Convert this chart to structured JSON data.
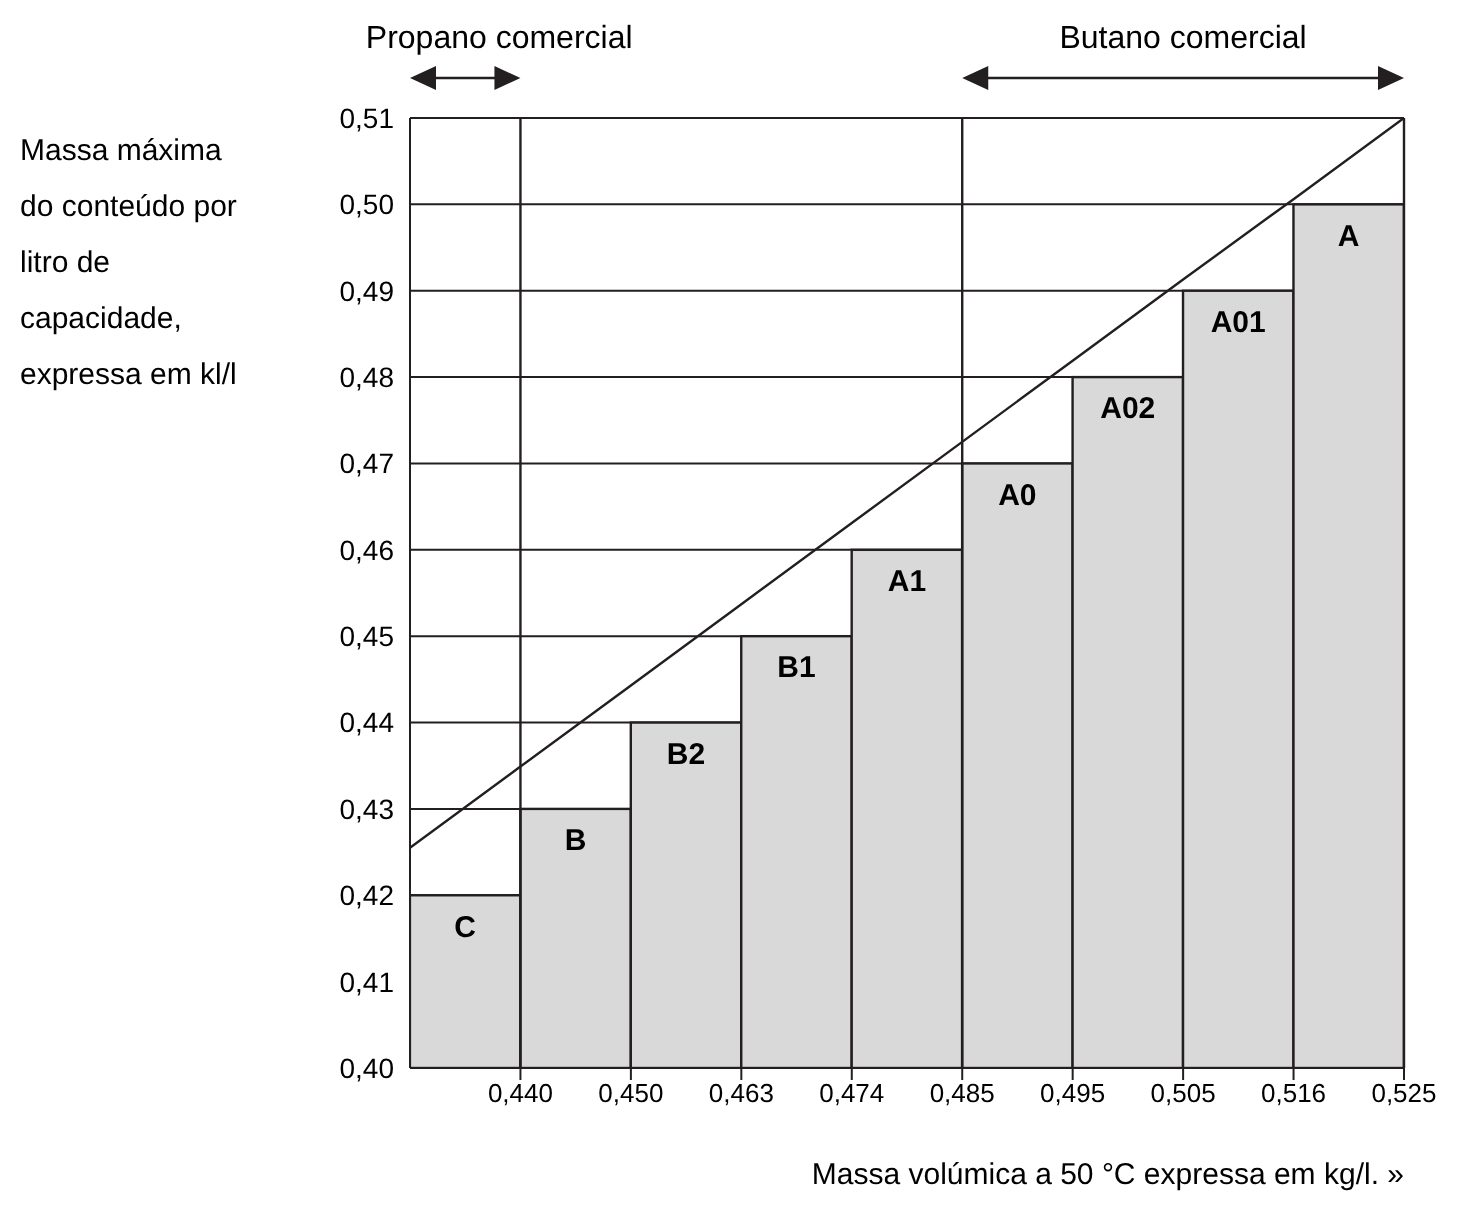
{
  "chart_data": {
    "type": "bar",
    "categories": [
      null,
      "0,440",
      "0,450",
      "0,463",
      "0,474",
      "0,485",
      "0,495",
      "0,505",
      "0,516",
      "0,525"
    ],
    "values": [
      null,
      0.42,
      0.43,
      0.44,
      0.45,
      0.46,
      0.47,
      0.48,
      0.49,
      0.5
    ],
    "value_labels": [
      null,
      "C",
      "B",
      "B2",
      "B1",
      "A1",
      "A0",
      "A02",
      "A01",
      "A"
    ],
    "color": "#d9d9d9",
    "series": [
      {
        "type": "line",
        "color": "#231f20",
        "values": [
          0.4255,
          0.4349,
          0.4443,
          0.4537,
          0.4631,
          0.4725,
          0.4819,
          0.4913,
          0.5006,
          0.51
        ]
      }
    ],
    "ylim": [
      0.4,
      0.51
    ],
    "yticks": [
      {
        "value": 0.4,
        "label": "0,40"
      },
      {
        "value": 0.41,
        "label": "0,41"
      },
      {
        "value": 0.42,
        "label": "0,42"
      },
      {
        "value": 0.43,
        "label": "0,43"
      },
      {
        "value": 0.44,
        "label": "0,44"
      },
      {
        "value": 0.45,
        "label": "0,45"
      },
      {
        "value": 0.46,
        "label": "0,46"
      },
      {
        "value": 0.47,
        "label": "0,47"
      },
      {
        "value": 0.48,
        "label": "0,48"
      },
      {
        "value": 0.49,
        "label": "0,49"
      },
      {
        "value": 0.5,
        "label": "0,50"
      },
      {
        "value": 0.51,
        "label": "0,51"
      }
    ],
    "ylabel": "Massa máxima do conteúdo por litro de capacidade, expressa em kl/l",
    "xlabel": "Massa volúmica a 50 °C expressa em kg/l. »",
    "ref_lines": [
      {
        "axis": "x",
        "value": "0,440",
        "color": "#231f20"
      },
      {
        "axis": "x",
        "value": "0,485",
        "color": "#231f20"
      }
    ],
    "annotations": [
      "Propano comercial",
      "Butano comercial"
    ],
    "grid": "y"
  }
}
